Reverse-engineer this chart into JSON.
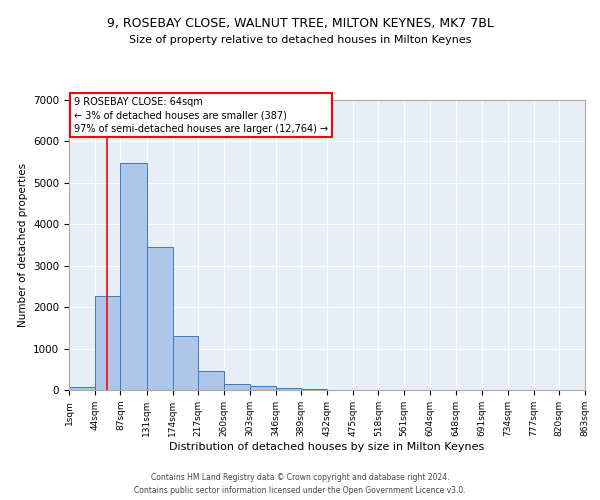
{
  "title_line1": "9, ROSEBAY CLOSE, WALNUT TREE, MILTON KEYNES, MK7 7BL",
  "title_line2": "Size of property relative to detached houses in Milton Keynes",
  "xlabel": "Distribution of detached houses by size in Milton Keynes",
  "ylabel": "Number of detached properties",
  "bar_edges": [
    1,
    44,
    87,
    131,
    174,
    217,
    260,
    303,
    346,
    389,
    432,
    475,
    518,
    561,
    604,
    648,
    691,
    734,
    777,
    820,
    863
  ],
  "bar_heights": [
    75,
    2270,
    5470,
    3450,
    1310,
    460,
    155,
    85,
    55,
    35,
    0,
    0,
    0,
    0,
    0,
    0,
    0,
    0,
    0,
    0
  ],
  "bar_color": "#aec6e8",
  "bar_edge_color": "#3a7abf",
  "red_line_x": 64,
  "annotation_text": "9 ROSEBAY CLOSE: 64sqm\n← 3% of detached houses are smaller (387)\n97% of semi-detached houses are larger (12,764) →",
  "annotation_box_color": "white",
  "annotation_box_edge_color": "red",
  "ylim": [
    0,
    7000
  ],
  "yticks": [
    0,
    1000,
    2000,
    3000,
    4000,
    5000,
    6000,
    7000
  ],
  "bg_color": "#e8eef8",
  "grid_color": "white",
  "footer_line1": "Contains HM Land Registry data © Crown copyright and database right 2024.",
  "footer_line2": "Contains public sector information licensed under the Open Government Licence v3.0.",
  "tick_labels": [
    "1sqm",
    "44sqm",
    "87sqm",
    "131sqm",
    "174sqm",
    "217sqm",
    "260sqm",
    "303sqm",
    "346sqm",
    "389sqm",
    "432sqm",
    "475sqm",
    "518sqm",
    "561sqm",
    "604sqm",
    "648sqm",
    "691sqm",
    "734sqm",
    "777sqm",
    "820sqm",
    "863sqm"
  ]
}
